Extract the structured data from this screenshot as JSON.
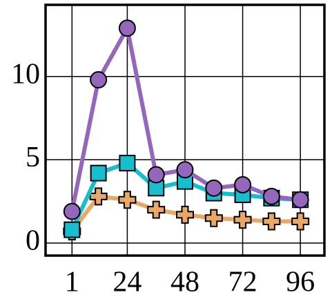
{
  "chart_data": {
    "type": "line",
    "x": [
      1,
      12,
      24,
      36,
      48,
      60,
      72,
      84,
      96
    ],
    "series": [
      {
        "color": "#e8a868",
        "marker": "plus",
        "values": [
          0.7,
          2.8,
          2.6,
          2.0,
          1.7,
          1.5,
          1.4,
          1.3,
          1.3
        ]
      },
      {
        "color": "#17becf",
        "marker": "square",
        "values": [
          0.8,
          4.2,
          4.8,
          3.3,
          3.7,
          3.0,
          2.9,
          2.7,
          2.6
        ]
      },
      {
        "color": "#9467bd",
        "marker": "circle",
        "values": [
          1.9,
          9.8,
          12.9,
          4.1,
          4.4,
          3.3,
          3.5,
          2.8,
          2.6
        ]
      }
    ],
    "xlim": [
      -10,
      106
    ],
    "xticks": [
      1,
      24,
      48,
      72,
      96
    ],
    "ylim": [
      -0.75,
      14.3
    ],
    "yticks": [
      0,
      5,
      10
    ],
    "grid": true
  }
}
